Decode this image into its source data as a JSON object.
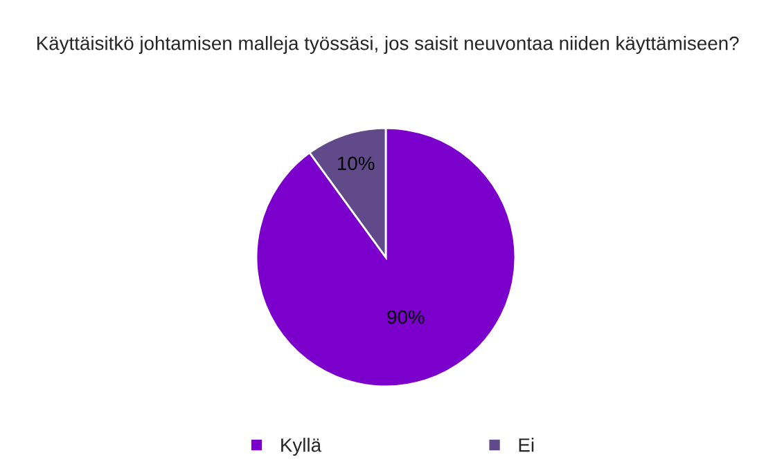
{
  "chart_data": {
    "type": "pie",
    "title": "Käyttäisitkö johtamisen malleja työssäsi, jos saisit neuvontaa niiden käyttämiseen?",
    "categories": [
      "Kyllä",
      "Ei"
    ],
    "values": [
      90,
      10
    ],
    "value_labels": [
      "90%",
      "10%"
    ],
    "colors": [
      "#7b00cc",
      "#604a8a"
    ],
    "legend": "bottom"
  }
}
